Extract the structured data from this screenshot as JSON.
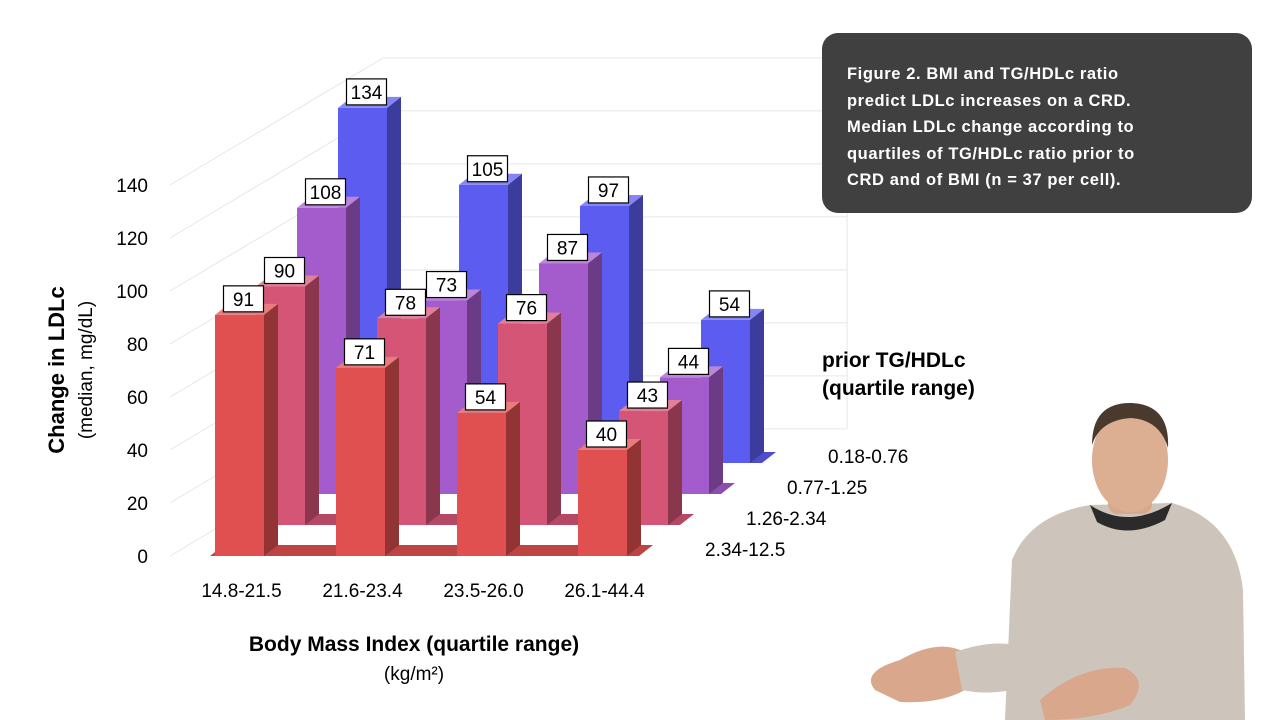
{
  "caption": {
    "lines": [
      "Figure 2. BMI and TG/HDLc ratio",
      "predict LDLc increases on a CRD.",
      "Median LDLc change according to",
      "quartiles of TG/HDLc ratio prior to",
      "CRD and of BMI (n = 37 per cell)."
    ]
  },
  "chart_data": {
    "type": "bar",
    "subtype": "3d-grouped",
    "ylabel": "Change in LDLc",
    "ylabel_sub": "(median, mg/dL)",
    "xlabel": "Body Mass Index (quartile range)",
    "xlabel_unit": "(kg/m²)",
    "depth_label_line1": "prior TG/HDLc",
    "depth_label_line2": "(quartile range)",
    "ylim": [
      0,
      140
    ],
    "yticks": [
      0,
      20,
      40,
      60,
      80,
      100,
      120,
      140
    ],
    "grid": true,
    "categories": [
      "14.8-21.5",
      "21.6-23.4",
      "23.5-26.0",
      "26.1-44.4"
    ],
    "series": [
      {
        "name": "2.34-12.5",
        "color": "#e05050",
        "values": [
          91,
          71,
          54,
          40
        ]
      },
      {
        "name": "1.26-2.34",
        "color": "#d55577",
        "values": [
          90,
          78,
          76,
          43
        ]
      },
      {
        "name": "0.77-1.25",
        "color": "#a45ccc",
        "values": [
          108,
          73,
          87,
          44
        ]
      },
      {
        "name": "0.18-0.76",
        "color": "#5c5cf0",
        "values": [
          134,
          105,
          97,
          54
        ]
      }
    ]
  }
}
